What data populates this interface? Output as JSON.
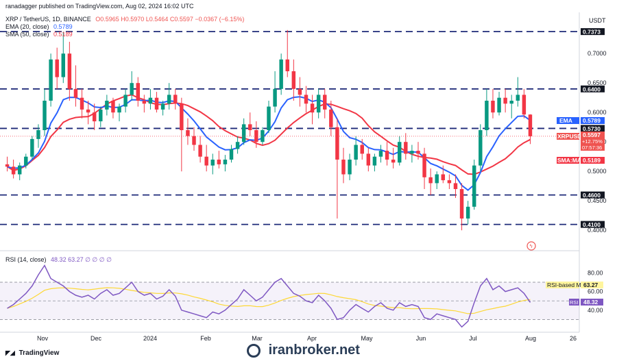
{
  "header": {
    "published": "ranadagger published on TradingView.com, Aug 02, 2024 16:02 UTC",
    "currency": "USDT"
  },
  "legend": {
    "symbol": "XRP / TetherUS, 1D, BINANCE",
    "ohlc": "O0.5965  H0.5970  L0.5464  C0.5597  −0.0367 (−6.15%)",
    "ema": "EMA (20, close)",
    "ema_value": "0.5789",
    "sma": "SMA (50, close)",
    "sma_value": "0.5189"
  },
  "rsi_legend": {
    "label": "RSI (14, close)",
    "values": "48.32  63.27  ∅  ∅  ∅  ∅"
  },
  "badges": {
    "ema_label": "EMA",
    "ema_value": "0.5789",
    "symbol": "XRPUSDT",
    "price": "0.5597",
    "change": "+12.75%",
    "countdown": "07:57:36",
    "sma_label": "SMA:MA",
    "sma_value": "0.5189",
    "rsi_ma_label": "RSI-based MA",
    "rsi_ma_value": "63.27",
    "rsi_label": "RSI",
    "rsi_value": "48.32"
  },
  "footer": {
    "brand": "TradingView",
    "watermark": "iranbroker.net"
  },
  "chart_data": {
    "type": "candlestick",
    "symbol": "XRP / TetherUS",
    "timeframe": "1D",
    "price_axis_ticks": [
      0.7,
      0.65,
      0.6,
      0.55,
      0.5,
      0.45,
      0.4
    ],
    "price_ylim": [
      0.37,
      0.77
    ],
    "support_resistance": [
      0.7373,
      0.64,
      0.573,
      0.46,
      0.41
    ],
    "time_labels": [
      "Nov",
      "Dec",
      "2024",
      "Feb",
      "Mar",
      "Apr",
      "May",
      "Jun",
      "Jul",
      "Aug",
      "26"
    ],
    "last": {
      "open": 0.5965,
      "high": 0.597,
      "low": 0.5464,
      "close": 0.5597
    },
    "candles": [
      [
        0.512,
        0.525,
        0.5,
        0.508
      ],
      [
        0.508,
        0.52,
        0.488,
        0.495
      ],
      [
        0.495,
        0.515,
        0.485,
        0.51
      ],
      [
        0.51,
        0.53,
        0.505,
        0.525
      ],
      [
        0.525,
        0.56,
        0.52,
        0.555
      ],
      [
        0.555,
        0.58,
        0.54,
        0.57
      ],
      [
        0.57,
        0.64,
        0.56,
        0.62
      ],
      [
        0.62,
        0.7,
        0.61,
        0.69
      ],
      [
        0.69,
        0.71,
        0.64,
        0.66
      ],
      [
        0.66,
        0.737,
        0.65,
        0.7
      ],
      [
        0.7,
        0.72,
        0.62,
        0.64
      ],
      [
        0.64,
        0.68,
        0.61,
        0.625
      ],
      [
        0.625,
        0.64,
        0.59,
        0.605
      ],
      [
        0.605,
        0.62,
        0.58,
        0.6
      ],
      [
        0.6,
        0.615,
        0.57,
        0.585
      ],
      [
        0.585,
        0.61,
        0.575,
        0.605
      ],
      [
        0.605,
        0.63,
        0.595,
        0.62
      ],
      [
        0.62,
        0.625,
        0.59,
        0.6
      ],
      [
        0.6,
        0.615,
        0.585,
        0.61
      ],
      [
        0.61,
        0.64,
        0.6,
        0.63
      ],
      [
        0.63,
        0.67,
        0.62,
        0.65
      ],
      [
        0.65,
        0.66,
        0.61,
        0.62
      ],
      [
        0.62,
        0.63,
        0.6,
        0.615
      ],
      [
        0.615,
        0.64,
        0.605,
        0.625
      ],
      [
        0.625,
        0.635,
        0.6,
        0.605
      ],
      [
        0.605,
        0.62,
        0.595,
        0.615
      ],
      [
        0.615,
        0.65,
        0.605,
        0.63
      ],
      [
        0.63,
        0.64,
        0.605,
        0.615
      ],
      [
        0.615,
        0.625,
        0.5,
        0.57
      ],
      [
        0.57,
        0.59,
        0.545,
        0.56
      ],
      [
        0.56,
        0.575,
        0.535,
        0.545
      ],
      [
        0.545,
        0.56,
        0.515,
        0.525
      ],
      [
        0.525,
        0.545,
        0.5,
        0.51
      ],
      [
        0.51,
        0.53,
        0.495,
        0.52
      ],
      [
        0.52,
        0.535,
        0.505,
        0.512
      ],
      [
        0.512,
        0.528,
        0.5,
        0.52
      ],
      [
        0.52,
        0.545,
        0.515,
        0.538
      ],
      [
        0.538,
        0.56,
        0.53,
        0.55
      ],
      [
        0.55,
        0.59,
        0.545,
        0.58
      ],
      [
        0.58,
        0.6,
        0.56,
        0.57
      ],
      [
        0.57,
        0.585,
        0.54,
        0.55
      ],
      [
        0.55,
        0.575,
        0.545,
        0.57
      ],
      [
        0.57,
        0.62,
        0.565,
        0.61
      ],
      [
        0.61,
        0.67,
        0.6,
        0.64
      ],
      [
        0.64,
        0.7,
        0.63,
        0.69
      ],
      [
        0.69,
        0.74,
        0.66,
        0.67
      ],
      [
        0.67,
        0.69,
        0.62,
        0.64
      ],
      [
        0.64,
        0.66,
        0.61,
        0.63
      ],
      [
        0.63,
        0.645,
        0.6,
        0.615
      ],
      [
        0.615,
        0.63,
        0.58,
        0.6
      ],
      [
        0.6,
        0.64,
        0.59,
        0.63
      ],
      [
        0.63,
        0.64,
        0.59,
        0.605
      ],
      [
        0.605,
        0.62,
        0.56,
        0.575
      ],
      [
        0.575,
        0.59,
        0.42,
        0.52
      ],
      [
        0.52,
        0.54,
        0.48,
        0.495
      ],
      [
        0.495,
        0.53,
        0.485,
        0.52
      ],
      [
        0.52,
        0.56,
        0.51,
        0.545
      ],
      [
        0.545,
        0.555,
        0.52,
        0.53
      ],
      [
        0.53,
        0.54,
        0.5,
        0.51
      ],
      [
        0.51,
        0.53,
        0.5,
        0.525
      ],
      [
        0.525,
        0.545,
        0.515,
        0.535
      ],
      [
        0.535,
        0.55,
        0.51,
        0.52
      ],
      [
        0.52,
        0.54,
        0.505,
        0.515
      ],
      [
        0.515,
        0.56,
        0.51,
        0.55
      ],
      [
        0.55,
        0.565,
        0.52,
        0.53
      ],
      [
        0.53,
        0.545,
        0.515,
        0.535
      ],
      [
        0.535,
        0.55,
        0.52,
        0.53
      ],
      [
        0.53,
        0.54,
        0.47,
        0.49
      ],
      [
        0.49,
        0.505,
        0.46,
        0.48
      ],
      [
        0.48,
        0.5,
        0.47,
        0.495
      ],
      [
        0.495,
        0.51,
        0.48,
        0.485
      ],
      [
        0.485,
        0.495,
        0.47,
        0.48
      ],
      [
        0.48,
        0.495,
        0.455,
        0.47
      ],
      [
        0.47,
        0.48,
        0.4,
        0.42
      ],
      [
        0.42,
        0.45,
        0.41,
        0.44
      ],
      [
        0.44,
        0.52,
        0.435,
        0.51
      ],
      [
        0.51,
        0.58,
        0.5,
        0.57
      ],
      [
        0.57,
        0.64,
        0.56,
        0.62
      ],
      [
        0.62,
        0.64,
        0.59,
        0.6
      ],
      [
        0.6,
        0.635,
        0.595,
        0.625
      ],
      [
        0.625,
        0.64,
        0.6,
        0.615
      ],
      [
        0.615,
        0.63,
        0.59,
        0.62
      ],
      [
        0.62,
        0.66,
        0.61,
        0.63
      ],
      [
        0.63,
        0.64,
        0.59,
        0.5965
      ],
      [
        0.5965,
        0.597,
        0.5464,
        0.5597
      ]
    ],
    "ema20_last": 0.5789,
    "sma50_last": 0.5189,
    "rsi_axis_ticks": [
      80.0,
      60.0,
      40.0
    ],
    "rsi_ylim": [
      20,
      95
    ],
    "rsi": [
      42,
      46,
      52,
      58,
      66,
      78,
      88,
      74,
      70,
      66,
      60,
      56,
      54,
      56,
      52,
      58,
      62,
      56,
      58,
      64,
      70,
      60,
      56,
      58,
      52,
      55,
      62,
      55,
      40,
      38,
      36,
      34,
      32,
      38,
      36,
      40,
      46,
      52,
      62,
      56,
      50,
      54,
      62,
      70,
      74,
      66,
      58,
      55,
      50,
      48,
      56,
      50,
      42,
      30,
      32,
      40,
      46,
      42,
      38,
      44,
      48,
      42,
      40,
      48,
      44,
      46,
      44,
      32,
      30,
      36,
      34,
      32,
      30,
      22,
      28,
      48,
      66,
      74,
      62,
      66,
      60,
      62,
      64,
      58,
      48.32
    ],
    "rsi_ma_last": 63.27
  }
}
